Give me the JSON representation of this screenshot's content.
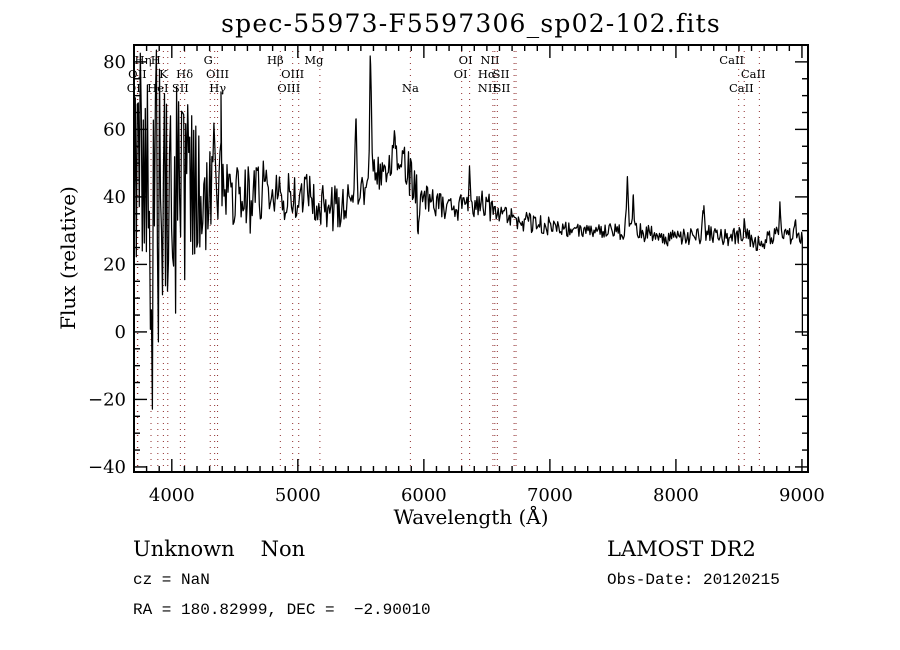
{
  "window": {
    "background": "#ffffff"
  },
  "chart_data": {
    "type": "line",
    "title": "spec-55973-F5597306_sp02-102.fits",
    "xlabel": "Wavelength (Å)",
    "ylabel": "Flux (relative)",
    "xlim": [
      3700,
      9048
    ],
    "ylim": [
      -41.5,
      85
    ],
    "grid": false,
    "x_major_ticks": [
      {
        "value": 4000,
        "label": "4000"
      },
      {
        "value": 5000,
        "label": "5000"
      },
      {
        "value": 6000,
        "label": "6000"
      },
      {
        "value": 7000,
        "label": "7000"
      },
      {
        "value": 8000,
        "label": "8000"
      },
      {
        "value": 9000,
        "label": "9000"
      }
    ],
    "x_minor_step": 100,
    "y_major_ticks": [
      {
        "value": 80,
        "label": "80"
      },
      {
        "value": 60,
        "label": "60"
      },
      {
        "value": 40,
        "label": "40"
      },
      {
        "value": 20,
        "label": "20"
      },
      {
        "value": 0,
        "label": "0"
      },
      {
        "value": -20,
        "label": "−20"
      },
      {
        "value": -40,
        "label": "−40"
      }
    ],
    "y_minor_step": 5,
    "axis_color": "#000000",
    "series": [
      {
        "name": "spectrum",
        "color": "#000000",
        "sample_step": 8,
        "seed": 20120215,
        "continuum_anchors": [
          [
            3700,
            22
          ],
          [
            3780,
            30
          ],
          [
            3900,
            36
          ],
          [
            4050,
            40
          ],
          [
            4200,
            42
          ],
          [
            4350,
            42
          ],
          [
            4500,
            41
          ],
          [
            4650,
            40
          ],
          [
            4800,
            40
          ],
          [
            4950,
            40
          ],
          [
            5050,
            41
          ],
          [
            5150,
            38
          ],
          [
            5250,
            36
          ],
          [
            5350,
            38
          ],
          [
            5450,
            40
          ],
          [
            5550,
            43
          ],
          [
            5650,
            46
          ],
          [
            5720,
            48
          ],
          [
            5780,
            51
          ],
          [
            5860,
            48
          ],
          [
            5960,
            42
          ],
          [
            6050,
            39
          ],
          [
            6150,
            37
          ],
          [
            6300,
            37
          ],
          [
            6400,
            38
          ],
          [
            6480,
            38
          ],
          [
            6550,
            36
          ],
          [
            6650,
            34
          ],
          [
            6750,
            33
          ],
          [
            6900,
            32
          ],
          [
            7050,
            31
          ],
          [
            7200,
            30
          ],
          [
            7350,
            30
          ],
          [
            7500,
            30
          ],
          [
            7650,
            30
          ],
          [
            7800,
            29
          ],
          [
            7950,
            28
          ],
          [
            8100,
            28
          ],
          [
            8250,
            29
          ],
          [
            8400,
            28
          ],
          [
            8550,
            29
          ],
          [
            8650,
            26
          ],
          [
            8750,
            28
          ],
          [
            8850,
            29
          ],
          [
            8950,
            28
          ],
          [
            9048,
            28
          ]
        ],
        "noise_segments": [
          [
            3700,
            3900,
            60
          ],
          [
            3900,
            4050,
            46
          ],
          [
            4050,
            4200,
            32
          ],
          [
            4200,
            4350,
            20
          ],
          [
            4350,
            4800,
            11
          ],
          [
            4800,
            5350,
            7
          ],
          [
            5350,
            5600,
            5
          ],
          [
            5600,
            5950,
            6.5
          ],
          [
            5950,
            6550,
            4
          ],
          [
            6550,
            7000,
            3
          ],
          [
            7000,
            7550,
            2.2
          ],
          [
            7550,
            9003,
            2.6
          ]
        ],
        "spikes": [
          [
            3985,
            79,
            6
          ],
          [
            4300,
            67,
            5
          ],
          [
            4390,
            64,
            5
          ],
          [
            5461,
            63,
            6
          ],
          [
            5577,
            82,
            7
          ],
          [
            5772,
            60,
            7
          ],
          [
            5955,
            29,
            7
          ],
          [
            6362,
            49,
            5
          ],
          [
            7615,
            46,
            7
          ],
          [
            7660,
            40,
            6
          ],
          [
            8220,
            37,
            6
          ],
          [
            8545,
            34,
            6
          ],
          [
            8825,
            36,
            6
          ],
          [
            8945,
            34,
            5
          ]
        ],
        "end_drop": {
          "wavelength": 9003,
          "flux": -1
        }
      }
    ],
    "reference_lines": {
      "color": "#8e2a2a",
      "style": "dotted",
      "label_rows_y": [
        64,
        78,
        92
      ],
      "lines": [
        {
          "label": "Hη",
          "wavelength": 3835,
          "row": 1,
          "dx": -8
        },
        {
          "label": "H",
          "wavelength": 3968,
          "row": 1,
          "dx": -12
        },
        {
          "label": "G",
          "wavelength": 4305,
          "row": 1,
          "dx": -2
        },
        {
          "label": "Hβ",
          "wavelength": 4861,
          "row": 1,
          "dx": -5
        },
        {
          "label": "Mg",
          "wavelength": 5175,
          "row": 1,
          "dx": -6
        },
        {
          "label": "OI",
          "wavelength": 6300,
          "row": 1,
          "dx": 4
        },
        {
          "label": "NII",
          "wavelength": 6548,
          "row": 1,
          "dx": -3
        },
        {
          "label": "CaII",
          "wavelength": 8498,
          "row": 1,
          "dx": -7
        },
        {
          "label": "OII",
          "wavelength": 3727,
          "row": 2,
          "dx": 0
        },
        {
          "label": "K",
          "wavelength": 3933,
          "row": 2,
          "dx": 0
        },
        {
          "label": "Hδ",
          "wavelength": 4102,
          "row": 2,
          "dx": 0
        },
        {
          "label": "OIII",
          "wavelength": 4363,
          "row": 2,
          "dx": 0
        },
        {
          "label": "OIII",
          "wavelength": 4959,
          "row": 2,
          "dx": 0
        },
        {
          "label": "OI",
          "wavelength": 6363,
          "row": 2,
          "dx": -9
        },
        {
          "label": "Hα",
          "wavelength": 6563,
          "row": 2,
          "dx": -8
        },
        {
          "label": "SII",
          "wavelength": 6716,
          "row": 2,
          "dx": -13
        },
        {
          "label": "CaII",
          "wavelength": 8542,
          "row": 2,
          "dx": 9
        },
        {
          "label": "OI",
          "wavelength": 3730,
          "row": 3,
          "dx": -4
        },
        {
          "label": "HeI",
          "wavelength": 3889,
          "row": 3,
          "dx": 0
        },
        {
          "label": "SII",
          "wavelength": 4068,
          "row": 3,
          "dx": 0
        },
        {
          "label": "Hγ",
          "wavelength": 4340,
          "row": 3,
          "dx": 3
        },
        {
          "label": "OIII",
          "wavelength": 5007,
          "row": 3,
          "dx": -10
        },
        {
          "label": "Na",
          "wavelength": 5893,
          "row": 3,
          "dx": 0
        },
        {
          "label": "NII",
          "wavelength": 6583,
          "row": 3,
          "dx": -10
        },
        {
          "label": "SII",
          "wavelength": 6731,
          "row": 3,
          "dx": -14
        },
        {
          "label": "CaII",
          "wavelength": 8662,
          "row": 3,
          "dx": -18
        }
      ]
    }
  },
  "footer": {
    "class_label": "Unknown",
    "subclass_label": "Non",
    "cz": "cz = NaN",
    "radec": "RA = 180.82999, DEC =  −2.90010",
    "survey": "LAMOST DR2",
    "obs_date": "Obs-Date: 20120215"
  }
}
